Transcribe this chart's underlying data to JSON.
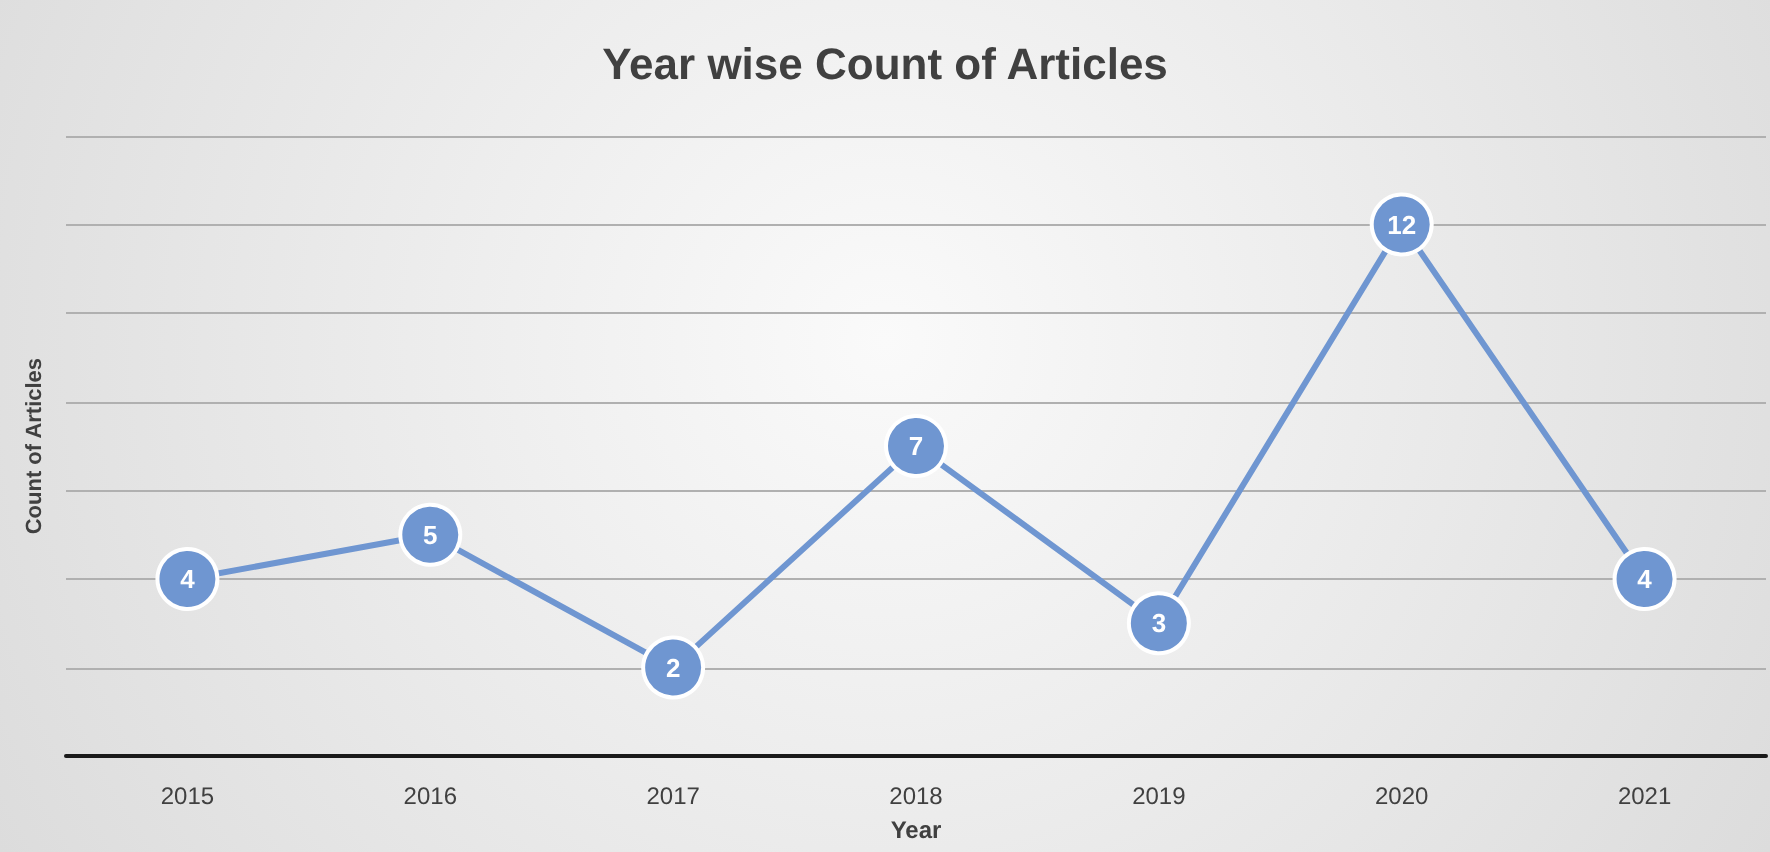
{
  "chart_data": {
    "type": "line",
    "title": "Year wise Count of Articles",
    "xlabel": "Year",
    "ylabel": "Count of Articles",
    "categories": [
      "2015",
      "2016",
      "2017",
      "2018",
      "2019",
      "2020",
      "2021"
    ],
    "series": [
      {
        "color": "#6f96d1",
        "values": [
          4,
          5,
          2,
          7,
          3,
          12,
          4
        ]
      }
    ],
    "ylim": [
      0,
      14
    ],
    "yticks": [
      {
        "value": 0,
        "label": null
      },
      {
        "value": 2,
        "label": null
      },
      {
        "value": 4,
        "label": null
      },
      {
        "value": 6,
        "label": null
      },
      {
        "value": 8,
        "label": null
      },
      {
        "value": 10,
        "label": null
      },
      {
        "value": 12,
        "label": null
      },
      {
        "value": 14,
        "label": null
      }
    ],
    "tick_labels": "x",
    "grid": "y",
    "marker": "circle",
    "line_style": "solid",
    "data_labels": true
  }
}
